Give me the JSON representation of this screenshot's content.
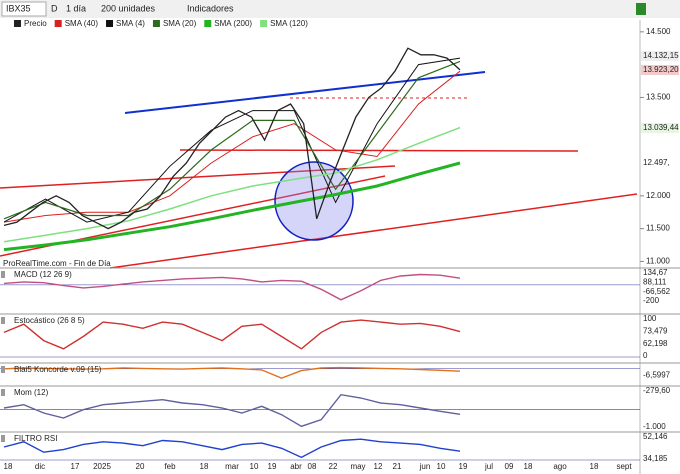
{
  "toolbar": {
    "symbol": "IBX35",
    "d": "D",
    "period": "1 día",
    "units": "200 unidades",
    "indicators": "Indicadores"
  },
  "chart_data": {
    "type": "line",
    "source": "ProRealTime.com - Fin de Día",
    "ylim": [
      10900,
      14650
    ],
    "yticks": [
      {
        "value": 14500,
        "label": "14.500"
      },
      {
        "value": 13500,
        "label": "13.500"
      },
      {
        "value": 12000,
        "label": "12.000"
      },
      {
        "value": 11500,
        "label": "11.500"
      },
      {
        "value": 11000,
        "label": "11.000"
      }
    ],
    "badges": [
      {
        "label": "14.132,15",
        "color": "#eee"
      },
      {
        "label": "13.923,20",
        "color": "#f4c9c9"
      },
      {
        "label": "13.039,44",
        "color": "#e6f6e0"
      },
      {
        "label": "12.497,",
        "color": "#fff"
      }
    ],
    "x_labels": [
      "18",
      "dic",
      "17",
      "2025",
      "20",
      "feb",
      "18",
      "mar",
      "10",
      "19",
      "abr",
      "08",
      "22",
      "may",
      "12",
      "21",
      "jun",
      "10",
      "19",
      "jul",
      "09",
      "18",
      "ago",
      "18",
      "sept"
    ],
    "series": [
      {
        "name": "Precio",
        "color": "#222",
        "values": [
          11550,
          11600,
          11750,
          11900,
          12000,
          11900,
          11700,
          11600,
          11500,
          11600,
          11750,
          11800,
          12000,
          12300,
          12500,
          12800,
          13000,
          13200,
          13300,
          13200,
          12850,
          13300,
          13400,
          13100,
          11650,
          12200,
          12700,
          13200,
          13500,
          13650,
          13900,
          14250,
          14150,
          14150,
          14100,
          13920
        ]
      },
      {
        "name": "SMA (40)",
        "color": "#d92020",
        "values": [
          11600,
          11700,
          11750,
          11750,
          12000,
          12500,
          12900,
          13100,
          12700,
          12600,
          13400,
          13900
        ]
      },
      {
        "name": "SMA (4)",
        "color": "#111",
        "values": [
          11600,
          11950,
          11600,
          11750,
          12450,
          13000,
          13300,
          13300,
          11900,
          13100,
          14000,
          14100
        ]
      },
      {
        "name": "SMA (20)",
        "color": "#2e6b1e",
        "values": [
          11650,
          11900,
          11700,
          11700,
          12100,
          12700,
          13150,
          13150,
          12100,
          12950,
          13800,
          14050
        ]
      },
      {
        "name": "SMA (200)",
        "color": "#22b422",
        "values": [
          11180,
          11250,
          11330,
          11430,
          11530,
          11650,
          11780,
          11900,
          12020,
          12150,
          12330,
          12500
        ]
      },
      {
        "name": "SMA (120)",
        "color": "#7ee07e",
        "values": [
          11300,
          11400,
          11500,
          11620,
          11800,
          12000,
          12150,
          12250,
          12350,
          12550,
          12800,
          13040
        ]
      }
    ]
  },
  "panels": [
    {
      "title": "MACD (12 26 9)",
      "color": "#c05080",
      "ylim": [
        -230,
        200
      ],
      "labels": [
        "134,67",
        "88,111",
        "-66,562",
        "-200"
      ],
      "values": [
        20,
        40,
        30,
        -10,
        -40,
        -20,
        10,
        40,
        60,
        80,
        90,
        100,
        80,
        40,
        60,
        50,
        -60,
        -200,
        -80,
        60,
        120,
        140,
        130,
        90
      ]
    },
    {
      "title": "Estocástico (26 8 5)",
      "color": "#d03030",
      "ylim": [
        0,
        100
      ],
      "labels": [
        "100",
        "73,479",
        "62,198",
        "0"
      ],
      "values": [
        60,
        80,
        40,
        20,
        50,
        85,
        80,
        70,
        85,
        80,
        60,
        40,
        75,
        80,
        50,
        20,
        60,
        85,
        90,
        85,
        80,
        82,
        75,
        62
      ]
    },
    {
      "title": "Blai5 Koncorde v.09 (15)",
      "color": "#e07020",
      "ylim": [
        -30,
        10
      ],
      "labels": [
        "-6,5997"
      ],
      "values": [
        0,
        2,
        1,
        0,
        -1,
        0,
        2,
        1,
        0,
        -1,
        1,
        2,
        0,
        -3,
        -25,
        -5,
        2,
        3,
        2,
        1,
        0,
        -2,
        -4,
        -6.6
      ]
    },
    {
      "title": "Mom (12)",
      "color": "#6060a0",
      "ylim": [
        -1100,
        1300
      ],
      "labels": [
        "-279,60",
        "-1.000"
      ],
      "values": [
        100,
        300,
        -200,
        -500,
        0,
        300,
        400,
        500,
        600,
        400,
        300,
        100,
        -200,
        200,
        -300,
        -1000,
        -600,
        900,
        700,
        400,
        300,
        100,
        -100,
        -280
      ]
    },
    {
      "title": "FILTRO RSI",
      "color": "#2040d0",
      "ylim": [
        0,
        100
      ],
      "labels": [
        "52,146",
        "34,185"
      ],
      "values": [
        50,
        70,
        30,
        40,
        60,
        70,
        65,
        55,
        75,
        70,
        55,
        40,
        60,
        65,
        45,
        10,
        50,
        75,
        80,
        70,
        65,
        60,
        45,
        34
      ]
    }
  ]
}
